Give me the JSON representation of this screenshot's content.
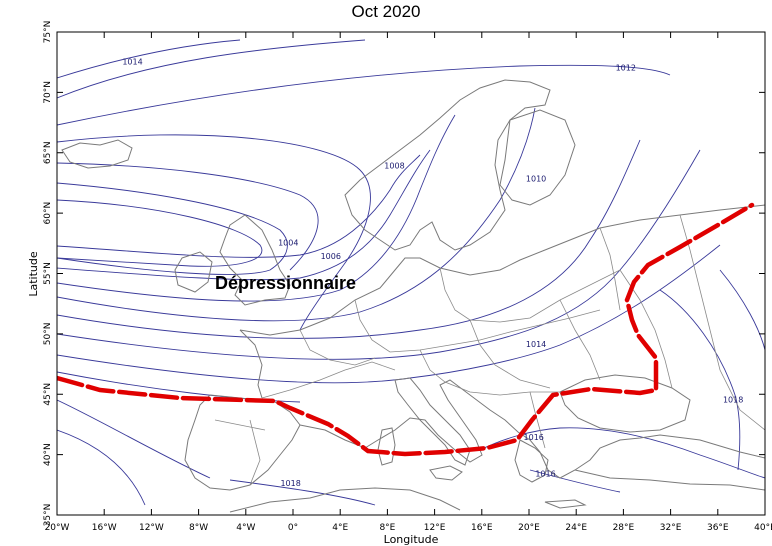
{
  "title": "Oct 2020",
  "axes": {
    "xlabel": "Longitude",
    "ylabel": "Latitude",
    "lon_range": [
      -20,
      40
    ],
    "lat_range": [
      35,
      75
    ],
    "lon_ticks": [
      "20°W",
      "16°W",
      "12°W",
      "8°W",
      "4°W",
      "0°",
      "4°E",
      "8°E",
      "12°E",
      "16°E",
      "20°E",
      "24°E",
      "28°E",
      "32°E",
      "36°E",
      "40°E"
    ],
    "lat_ticks": [
      "35°N",
      "40°N",
      "45°N",
      "50°N",
      "55°N",
      "60°N",
      "65°N",
      "70°N",
      "75°N"
    ]
  },
  "annotation": "Dépressionnaire",
  "isobar_labels": [
    {
      "text": "1014",
      "lon": -13.6,
      "lat": 72.3
    },
    {
      "text": "1012",
      "lon": 28.2,
      "lat": 71.8
    },
    {
      "text": "1008",
      "lon": 8.6,
      "lat": 63.7
    },
    {
      "text": "1010",
      "lon": 20.6,
      "lat": 62.6
    },
    {
      "text": "1004",
      "lon": -0.4,
      "lat": 57.3
    },
    {
      "text": "1006",
      "lon": 3.2,
      "lat": 56.2
    },
    {
      "text": "1014",
      "lon": 20.6,
      "lat": 48.9
    },
    {
      "text": "1018",
      "lon": 37.3,
      "lat": 44.3
    },
    {
      "text": "1016",
      "lon": 20.4,
      "lat": 41.2
    },
    {
      "text": "1016",
      "lon": 21.4,
      "lat": 38.2
    },
    {
      "text": "1018",
      "lon": -0.2,
      "lat": 37.4
    }
  ],
  "legend": {
    "front_color": "#e00000",
    "isobar_color": "#3a3a9a",
    "coast_color": "#7a7a7a"
  }
}
